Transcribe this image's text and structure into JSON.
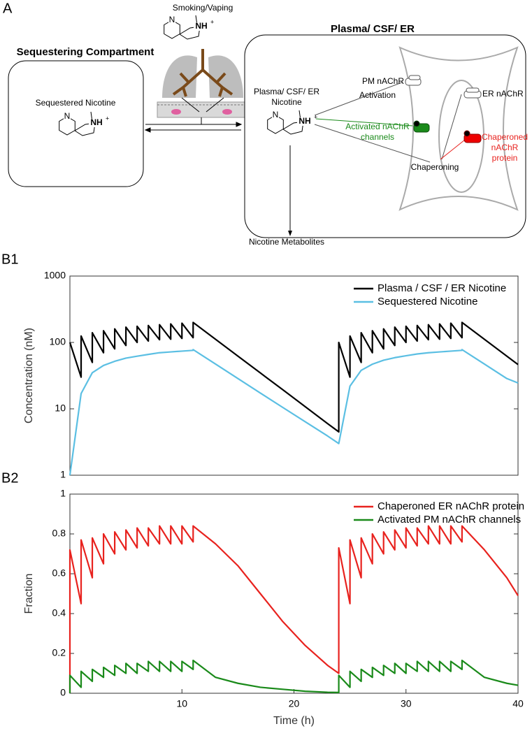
{
  "diagram": {
    "panel": "A",
    "source": "Smoking/Vaping",
    "left_compartment": {
      "title": "Sequestering Compartment",
      "label": "Sequestered Nicotine"
    },
    "right_compartment": {
      "title": "Plasma/ CSF/ ER",
      "nicotine": [
        "Plasma/ CSF/ ER",
        "Nicotine"
      ],
      "pm_receptor": "PM nAChR",
      "activation": "Activation",
      "activated": [
        "Activated nAChR",
        "channels"
      ],
      "er_receptor": "ER nAChR",
      "chaperoned": [
        "Chaperoned",
        "nAChR",
        "protein"
      ],
      "chaperoning": "Chaperoning"
    },
    "metabolites": "Nicotine Metabolites",
    "molecule": {
      "ring_n": "N",
      "amine": "NH",
      "charge": "+"
    }
  },
  "chart_data": [
    {
      "type": "line",
      "panel": "B1",
      "x": [
        0,
        0,
        1,
        1,
        2,
        2,
        3,
        3,
        4,
        4,
        5,
        5,
        6,
        6,
        7,
        7,
        8,
        8,
        9,
        9,
        10,
        10,
        11,
        11,
        13,
        15,
        17,
        19,
        21,
        23,
        24,
        24,
        25,
        25,
        26,
        26,
        27,
        27,
        28,
        28,
        29,
        29,
        30,
        30,
        31,
        31,
        32,
        32,
        33,
        33,
        34,
        34,
        35,
        35,
        37,
        39,
        40
      ],
      "xlim": [
        0,
        40
      ],
      "yscale": "log",
      "ylim": [
        1,
        1000
      ],
      "yticks": [
        1,
        10,
        100,
        1000
      ],
      "ylabel": "Concentration (nM)",
      "legend": "upper right",
      "series": [
        {
          "name": "Plasma / CSF / ER Nicotine",
          "color": "#000000",
          "values": [
            100,
            100,
            30,
            125,
            50,
            140,
            70,
            150,
            80,
            160,
            90,
            170,
            100,
            175,
            105,
            180,
            110,
            185,
            112,
            190,
            115,
            195,
            118,
            200,
            111.6,
            62.2,
            34.7,
            19.4,
            10.8,
            6.0,
            4.5,
            100,
            30,
            125,
            50,
            140,
            70,
            150,
            80,
            160,
            90,
            170,
            100,
            175,
            105,
            180,
            110,
            185,
            112,
            190,
            115,
            195,
            118,
            200,
            111.6,
            62.2,
            46.5
          ]
        },
        {
          "name": "Sequestered Nicotine",
          "color": "#5bbfe3",
          "values": [
            1,
            1,
            17,
            17,
            35,
            35,
            45,
            45,
            52,
            52,
            58,
            58,
            62,
            62,
            66,
            66,
            70,
            70,
            72,
            72,
            74,
            74,
            76,
            78,
            47.2,
            28.6,
            17.3,
            10.5,
            6.4,
            3.9,
            3,
            3,
            22,
            22,
            38,
            38,
            47,
            47,
            54,
            54,
            59,
            59,
            63,
            63,
            67,
            67,
            70,
            70,
            72,
            72,
            74,
            74,
            76,
            78,
            47.2,
            28.6,
            24.5
          ]
        }
      ]
    },
    {
      "type": "line",
      "panel": "B2",
      "x": [
        0,
        0,
        1,
        1,
        2,
        2,
        3,
        3,
        4,
        4,
        5,
        5,
        6,
        6,
        7,
        7,
        8,
        8,
        9,
        9,
        10,
        10,
        11,
        11,
        13,
        15,
        17,
        19,
        21,
        23,
        24,
        24,
        25,
        25,
        26,
        26,
        27,
        27,
        28,
        28,
        29,
        29,
        30,
        30,
        31,
        31,
        32,
        32,
        33,
        33,
        34,
        34,
        35,
        35,
        37,
        39,
        40
      ],
      "xlim": [
        0,
        40
      ],
      "xticks": [
        10,
        20,
        30,
        40
      ],
      "xlabel": "Time (h)",
      "ylim": [
        0,
        1
      ],
      "yticks": [
        0,
        0.2,
        0.4,
        0.6,
        0.8,
        1
      ],
      "ylabel": "Fraction",
      "legend": "upper right",
      "series": [
        {
          "name": "Chaperoned ER nAChR protein",
          "color": "#e8221e",
          "values": [
            0,
            0.72,
            0.45,
            0.77,
            0.58,
            0.78,
            0.65,
            0.8,
            0.7,
            0.81,
            0.72,
            0.82,
            0.73,
            0.83,
            0.74,
            0.83,
            0.75,
            0.84,
            0.75,
            0.84,
            0.75,
            0.84,
            0.76,
            0.84,
            0.75,
            0.64,
            0.5,
            0.36,
            0.24,
            0.14,
            0.1,
            0.73,
            0.45,
            0.77,
            0.58,
            0.78,
            0.65,
            0.8,
            0.7,
            0.81,
            0.72,
            0.82,
            0.73,
            0.83,
            0.74,
            0.83,
            0.75,
            0.84,
            0.75,
            0.84,
            0.75,
            0.84,
            0.76,
            0.84,
            0.72,
            0.58,
            0.49
          ]
        },
        {
          "name": "Activated PM nAChR channels",
          "color": "#1a8a1a",
          "values": [
            0,
            0.09,
            0.03,
            0.11,
            0.06,
            0.12,
            0.08,
            0.13,
            0.09,
            0.14,
            0.1,
            0.15,
            0.1,
            0.15,
            0.11,
            0.16,
            0.11,
            0.16,
            0.11,
            0.16,
            0.11,
            0.16,
            0.12,
            0.165,
            0.08,
            0.05,
            0.03,
            0.02,
            0.01,
            0.005,
            0.004,
            0.09,
            0.03,
            0.11,
            0.06,
            0.12,
            0.08,
            0.13,
            0.09,
            0.14,
            0.1,
            0.15,
            0.1,
            0.15,
            0.11,
            0.16,
            0.11,
            0.16,
            0.11,
            0.16,
            0.11,
            0.16,
            0.12,
            0.165,
            0.08,
            0.05,
            0.04
          ]
        }
      ]
    }
  ]
}
